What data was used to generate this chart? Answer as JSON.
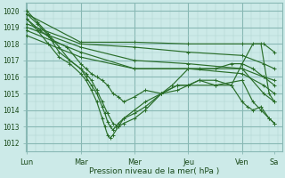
{
  "background_color": "#cceae8",
  "grid_minor_color": "#b0d4d0",
  "grid_major_color": "#88b8b4",
  "line_color": "#2a6e2a",
  "xlabel": "Pression niveau de la mer( hPa )",
  "ylim": [
    1011.5,
    1020.5
  ],
  "yticks": [
    1012,
    1013,
    1014,
    1015,
    1016,
    1017,
    1018,
    1019,
    1020
  ],
  "day_labels": [
    "Lun",
    "Mar",
    "Mer",
    "Jeu",
    "Ven",
    "Sa"
  ],
  "day_positions": [
    0.0,
    1.0,
    2.0,
    3.0,
    4.0,
    4.6
  ],
  "xlim": [
    -0.02,
    4.75
  ],
  "lines": [
    {
      "x": [
        0.0,
        1.0,
        2.0,
        3.0,
        4.0,
        4.4,
        4.6
      ],
      "y": [
        1019.8,
        1018.1,
        1018.1,
        1018.0,
        1018.0,
        1018.0,
        1017.5
      ]
    },
    {
      "x": [
        0.0,
        1.0,
        2.0,
        3.0,
        4.0,
        4.4,
        4.6
      ],
      "y": [
        1019.2,
        1018.0,
        1017.8,
        1017.5,
        1017.3,
        1016.8,
        1016.5
      ]
    },
    {
      "x": [
        0.0,
        1.0,
        2.0,
        3.0,
        4.0,
        4.4,
        4.6
      ],
      "y": [
        1019.0,
        1017.8,
        1017.0,
        1016.8,
        1016.5,
        1016.0,
        1015.5
      ]
    },
    {
      "x": [
        0.0,
        1.0,
        2.0,
        3.0,
        4.0,
        4.4,
        4.6
      ],
      "y": [
        1018.8,
        1017.5,
        1016.5,
        1016.5,
        1016.2,
        1015.5,
        1015.0
      ]
    },
    {
      "x": [
        0.0,
        1.0,
        2.0,
        3.0,
        4.0,
        4.4,
        4.6
      ],
      "y": [
        1018.5,
        1017.2,
        1016.5,
        1016.5,
        1016.5,
        1015.0,
        1014.5
      ]
    },
    {
      "x": [
        0.0,
        0.25,
        0.5,
        0.75,
        1.0,
        1.1,
        1.2,
        1.3,
        1.4,
        1.5,
        1.6,
        1.7,
        1.8,
        2.0,
        2.2,
        2.5,
        2.7,
        3.0,
        3.2,
        3.5,
        3.8,
        4.0,
        4.2,
        4.4,
        4.6
      ],
      "y": [
        1019.5,
        1018.8,
        1018.2,
        1017.8,
        1016.8,
        1016.5,
        1016.2,
        1016.0,
        1015.8,
        1015.5,
        1015.0,
        1014.8,
        1014.5,
        1014.8,
        1015.2,
        1015.0,
        1015.5,
        1016.5,
        1016.5,
        1016.5,
        1016.8,
        1016.8,
        1016.5,
        1016.0,
        1015.8
      ]
    },
    {
      "x": [
        0.0,
        0.2,
        0.4,
        0.6,
        0.8,
        1.0,
        1.1,
        1.2,
        1.3,
        1.4,
        1.5,
        1.6,
        1.7,
        1.8,
        2.0,
        2.2,
        2.5,
        2.8,
        3.0,
        3.2,
        3.5,
        3.8,
        4.0,
        4.2,
        4.35,
        4.5,
        4.6
      ],
      "y": [
        1019.8,
        1019.2,
        1018.5,
        1017.5,
        1017.0,
        1016.5,
        1016.2,
        1015.8,
        1015.2,
        1014.5,
        1013.8,
        1013.2,
        1013.0,
        1013.2,
        1013.5,
        1014.0,
        1015.0,
        1015.5,
        1015.5,
        1015.8,
        1015.8,
        1015.5,
        1016.8,
        1018.0,
        1018.0,
        1015.0,
        1014.5
      ]
    },
    {
      "x": [
        0.0,
        0.2,
        0.4,
        0.6,
        0.8,
        1.0,
        1.1,
        1.2,
        1.3,
        1.4,
        1.45,
        1.5,
        1.55,
        1.6,
        1.65,
        1.7,
        1.8,
        2.0,
        2.2,
        2.5,
        2.8,
        3.0,
        3.2,
        3.5,
        3.8,
        4.0,
        4.1,
        4.2,
        4.35,
        4.5,
        4.6
      ],
      "y": [
        1020.0,
        1019.3,
        1018.6,
        1017.8,
        1017.0,
        1016.5,
        1016.0,
        1015.5,
        1015.0,
        1014.2,
        1013.8,
        1013.3,
        1013.0,
        1012.8,
        1013.0,
        1013.2,
        1013.5,
        1013.8,
        1014.2,
        1015.0,
        1015.5,
        1015.5,
        1015.8,
        1015.5,
        1015.5,
        1014.5,
        1014.2,
        1014.0,
        1014.2,
        1013.5,
        1013.2
      ]
    },
    {
      "x": [
        0.0,
        0.2,
        0.4,
        0.6,
        0.8,
        1.0,
        1.1,
        1.2,
        1.3,
        1.4,
        1.45,
        1.5,
        1.55,
        1.6,
        1.7,
        1.8,
        2.0,
        2.2,
        2.5,
        2.8,
        3.0,
        3.5,
        4.0,
        4.2,
        4.35,
        4.5,
        4.6
      ],
      "y": [
        1019.5,
        1018.8,
        1018.0,
        1017.2,
        1016.8,
        1016.2,
        1015.8,
        1015.2,
        1014.5,
        1013.5,
        1013.0,
        1012.5,
        1012.3,
        1012.5,
        1013.0,
        1013.5,
        1014.0,
        1014.5,
        1015.0,
        1015.2,
        1015.5,
        1015.5,
        1015.8,
        1014.5,
        1014.0,
        1013.5,
        1013.2
      ]
    }
  ]
}
